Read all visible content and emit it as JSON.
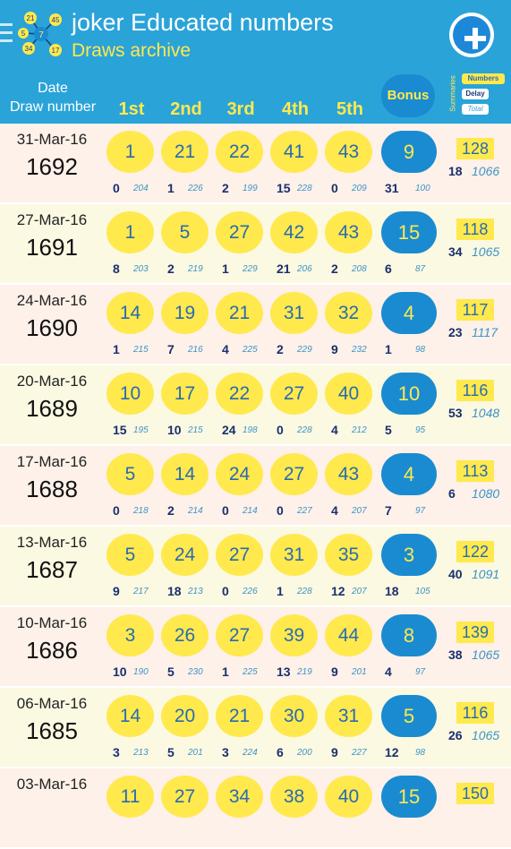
{
  "appbar": {
    "title": "joker Educated numbers",
    "subtitle": "Draws archive",
    "logo_numbers": [
      "21",
      "45",
      "5",
      "7",
      "34",
      "17"
    ]
  },
  "header": {
    "date": "Date",
    "draw": "Draw number",
    "cols": [
      "1st",
      "2nd",
      "3rd",
      "4th",
      "5th"
    ],
    "bonus": "Bonus",
    "summaries": "Summaries",
    "legend_numbers": "Numbers",
    "legend_delay": "Delay",
    "legend_total": "Total"
  },
  "colors": {
    "bar": "#2aa3d8",
    "ball": "#ffe94d",
    "bonus": "#1a8bd0",
    "accent_text": "#2a6ab0"
  },
  "rows": [
    {
      "date": "31-Mar-16",
      "draw": "1692",
      "balls": [
        {
          "n": "1",
          "d": "0",
          "t": "204"
        },
        {
          "n": "21",
          "d": "1",
          "t": "226"
        },
        {
          "n": "22",
          "d": "2",
          "t": "199"
        },
        {
          "n": "41",
          "d": "15",
          "t": "228"
        },
        {
          "n": "43",
          "d": "0",
          "t": "209"
        }
      ],
      "bonus": {
        "n": "9",
        "d": "31",
        "t": "100"
      },
      "summary": {
        "sum": "128",
        "delay": "18",
        "total": "1066"
      }
    },
    {
      "date": "27-Mar-16",
      "draw": "1691",
      "balls": [
        {
          "n": "1",
          "d": "8",
          "t": "203"
        },
        {
          "n": "5",
          "d": "2",
          "t": "219"
        },
        {
          "n": "27",
          "d": "1",
          "t": "229"
        },
        {
          "n": "42",
          "d": "21",
          "t": "206"
        },
        {
          "n": "43",
          "d": "2",
          "t": "208"
        }
      ],
      "bonus": {
        "n": "15",
        "d": "6",
        "t": "87"
      },
      "summary": {
        "sum": "118",
        "delay": "34",
        "total": "1065"
      }
    },
    {
      "date": "24-Mar-16",
      "draw": "1690",
      "balls": [
        {
          "n": "14",
          "d": "1",
          "t": "215"
        },
        {
          "n": "19",
          "d": "7",
          "t": "216"
        },
        {
          "n": "21",
          "d": "4",
          "t": "225"
        },
        {
          "n": "31",
          "d": "2",
          "t": "229"
        },
        {
          "n": "32",
          "d": "9",
          "t": "232"
        }
      ],
      "bonus": {
        "n": "4",
        "d": "1",
        "t": "98"
      },
      "summary": {
        "sum": "117",
        "delay": "23",
        "total": "1117"
      }
    },
    {
      "date": "20-Mar-16",
      "draw": "1689",
      "balls": [
        {
          "n": "10",
          "d": "15",
          "t": "195"
        },
        {
          "n": "17",
          "d": "10",
          "t": "215"
        },
        {
          "n": "22",
          "d": "24",
          "t": "198"
        },
        {
          "n": "27",
          "d": "0",
          "t": "228"
        },
        {
          "n": "40",
          "d": "4",
          "t": "212"
        }
      ],
      "bonus": {
        "n": "10",
        "d": "5",
        "t": "95"
      },
      "summary": {
        "sum": "116",
        "delay": "53",
        "total": "1048"
      }
    },
    {
      "date": "17-Mar-16",
      "draw": "1688",
      "balls": [
        {
          "n": "5",
          "d": "0",
          "t": "218"
        },
        {
          "n": "14",
          "d": "2",
          "t": "214"
        },
        {
          "n": "24",
          "d": "0",
          "t": "214"
        },
        {
          "n": "27",
          "d": "0",
          "t": "227"
        },
        {
          "n": "43",
          "d": "4",
          "t": "207"
        }
      ],
      "bonus": {
        "n": "4",
        "d": "7",
        "t": "97"
      },
      "summary": {
        "sum": "113",
        "delay": "6",
        "total": "1080"
      }
    },
    {
      "date": "13-Mar-16",
      "draw": "1687",
      "balls": [
        {
          "n": "5",
          "d": "9",
          "t": "217"
        },
        {
          "n": "24",
          "d": "18",
          "t": "213"
        },
        {
          "n": "27",
          "d": "0",
          "t": "226"
        },
        {
          "n": "31",
          "d": "1",
          "t": "228"
        },
        {
          "n": "35",
          "d": "12",
          "t": "207"
        }
      ],
      "bonus": {
        "n": "3",
        "d": "18",
        "t": "105"
      },
      "summary": {
        "sum": "122",
        "delay": "40",
        "total": "1091"
      }
    },
    {
      "date": "10-Mar-16",
      "draw": "1686",
      "balls": [
        {
          "n": "3",
          "d": "10",
          "t": "190"
        },
        {
          "n": "26",
          "d": "5",
          "t": "230"
        },
        {
          "n": "27",
          "d": "1",
          "t": "225"
        },
        {
          "n": "39",
          "d": "13",
          "t": "219"
        },
        {
          "n": "44",
          "d": "9",
          "t": "201"
        }
      ],
      "bonus": {
        "n": "8",
        "d": "4",
        "t": "97"
      },
      "summary": {
        "sum": "139",
        "delay": "38",
        "total": "1065"
      }
    },
    {
      "date": "06-Mar-16",
      "draw": "1685",
      "balls": [
        {
          "n": "14",
          "d": "3",
          "t": "213"
        },
        {
          "n": "20",
          "d": "5",
          "t": "201"
        },
        {
          "n": "21",
          "d": "3",
          "t": "224"
        },
        {
          "n": "30",
          "d": "6",
          "t": "200"
        },
        {
          "n": "31",
          "d": "9",
          "t": "227"
        }
      ],
      "bonus": {
        "n": "5",
        "d": "12",
        "t": "98"
      },
      "summary": {
        "sum": "116",
        "delay": "26",
        "total": "1065"
      }
    },
    {
      "date": "03-Mar-16",
      "draw": "",
      "balls": [
        {
          "n": "11",
          "d": "",
          "t": ""
        },
        {
          "n": "27",
          "d": "",
          "t": ""
        },
        {
          "n": "34",
          "d": "",
          "t": ""
        },
        {
          "n": "38",
          "d": "",
          "t": ""
        },
        {
          "n": "40",
          "d": "",
          "t": ""
        }
      ],
      "bonus": {
        "n": "15",
        "d": "",
        "t": ""
      },
      "summary": {
        "sum": "150",
        "delay": "",
        "total": ""
      }
    }
  ]
}
